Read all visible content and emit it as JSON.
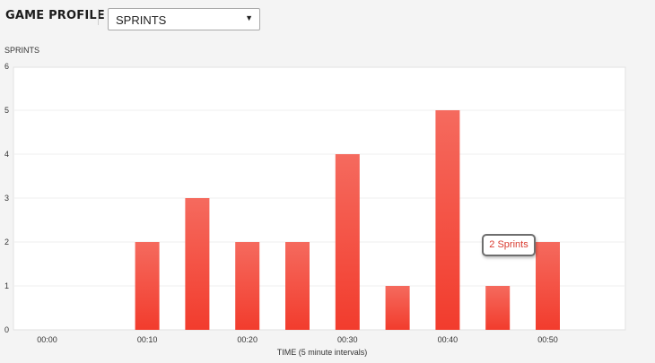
{
  "header": {
    "title": "GAME PROFILE",
    "select_value": "SPRINTS"
  },
  "tooltip": {
    "text": "2 Sprints"
  },
  "colors": {
    "bar_top": "#f56a5e",
    "bar_bottom": "#f23c2d",
    "tooltip_text": "#d93a2f"
  },
  "chart_data": {
    "type": "bar",
    "ylabel": "SPRINTS",
    "xlabel": "TIME (5 minute intervals)",
    "ylim": [
      0,
      6
    ],
    "yticks": [
      0,
      1,
      2,
      3,
      4,
      5,
      6
    ],
    "grid": true,
    "x_tick_labels": [
      "00:00",
      "00:10",
      "00:20",
      "00:30",
      "00:40",
      "00:50"
    ],
    "categories": [
      "00:00",
      "00:05",
      "00:10",
      "00:15",
      "00:20",
      "00:25",
      "00:30",
      "00:35",
      "00:40",
      "00:45",
      "00:50"
    ],
    "values": [
      0,
      0,
      2,
      3,
      2,
      2,
      4,
      1,
      5,
      1,
      2
    ]
  }
}
